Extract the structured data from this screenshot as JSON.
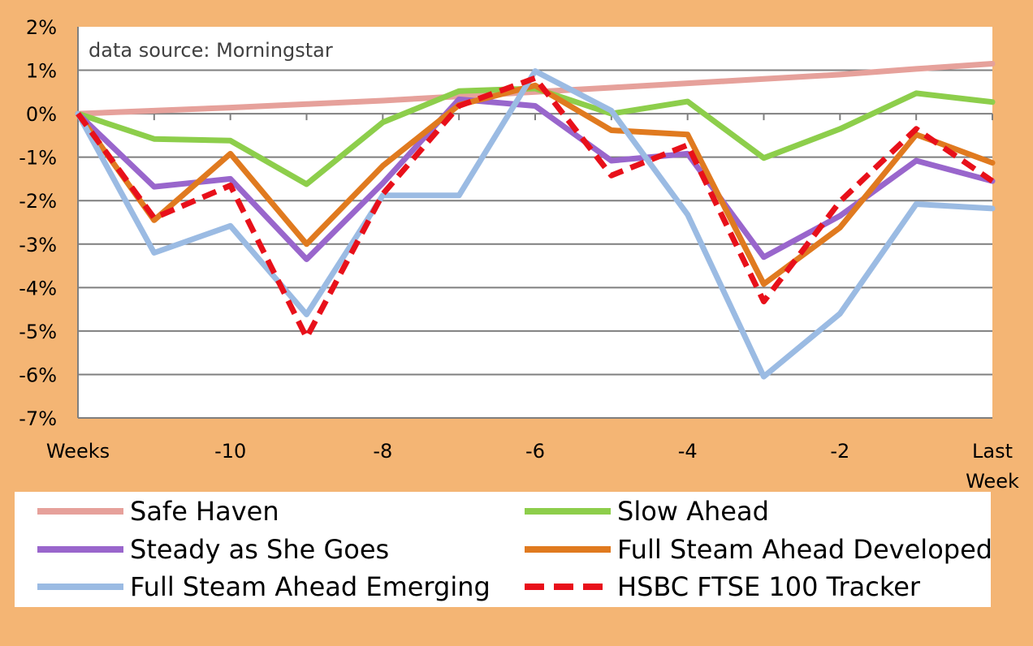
{
  "chart_data": {
    "type": "line",
    "annotation": "data source: Morningstar",
    "x_tick_labels": [
      "Weeks",
      "-10",
      "-8",
      "-6",
      "-4",
      "-2",
      "Last Week"
    ],
    "y_tick_labels": [
      "2%",
      "1%",
      "0%",
      "-1%",
      "-2%",
      "-3%",
      "-4%",
      "-5%",
      "-6%",
      "-7%"
    ],
    "ylim": [
      -7,
      2
    ],
    "x": [
      -12,
      -11,
      -10,
      -9,
      -8,
      -7,
      -6,
      -5,
      -4,
      -3,
      -2,
      -1,
      0
    ],
    "grid": true,
    "legend_position": "bottom",
    "series": [
      {
        "name": "Safe Haven",
        "color": "#E6A19B",
        "dashed": false,
        "values": [
          0.0,
          0.07,
          0.14,
          0.22,
          0.3,
          0.4,
          0.5,
          0.6,
          0.7,
          0.8,
          0.9,
          1.03,
          1.15
        ]
      },
      {
        "name": "Slow Ahead",
        "color": "#8DCE4B",
        "dashed": false,
        "values": [
          0.0,
          -0.58,
          -0.62,
          -1.62,
          -0.2,
          0.52,
          0.58,
          0.0,
          0.28,
          -1.02,
          -0.35,
          0.47,
          0.27
        ]
      },
      {
        "name": "Steady as She Goes",
        "color": "#9966CC",
        "dashed": false,
        "values": [
          0.0,
          -1.68,
          -1.5,
          -3.35,
          -1.6,
          0.33,
          0.18,
          -1.08,
          -0.92,
          -3.3,
          -2.35,
          -1.08,
          -1.55
        ]
      },
      {
        "name": "Full Steam Ahead Developed",
        "color": "#E07A1F",
        "dashed": false,
        "values": [
          0.0,
          -2.45,
          -0.92,
          -3.0,
          -1.2,
          0.2,
          0.65,
          -0.38,
          -0.48,
          -3.92,
          -2.62,
          -0.48,
          -1.13
        ]
      },
      {
        "name": "Full Steam Ahead Emerging",
        "color": "#9BBBE3",
        "dashed": false,
        "values": [
          0.0,
          -3.2,
          -2.58,
          -4.62,
          -1.88,
          -1.88,
          0.98,
          0.07,
          -2.32,
          -6.05,
          -4.6,
          -2.08,
          -2.18
        ]
      },
      {
        "name": "HSBC FTSE 100 Tracker",
        "color": "#E8101A",
        "dashed": true,
        "values": [
          0.0,
          -2.4,
          -1.65,
          -5.15,
          -1.85,
          0.18,
          0.82,
          -1.42,
          -0.72,
          -4.32,
          -2.02,
          -0.35,
          -1.55
        ]
      }
    ]
  }
}
